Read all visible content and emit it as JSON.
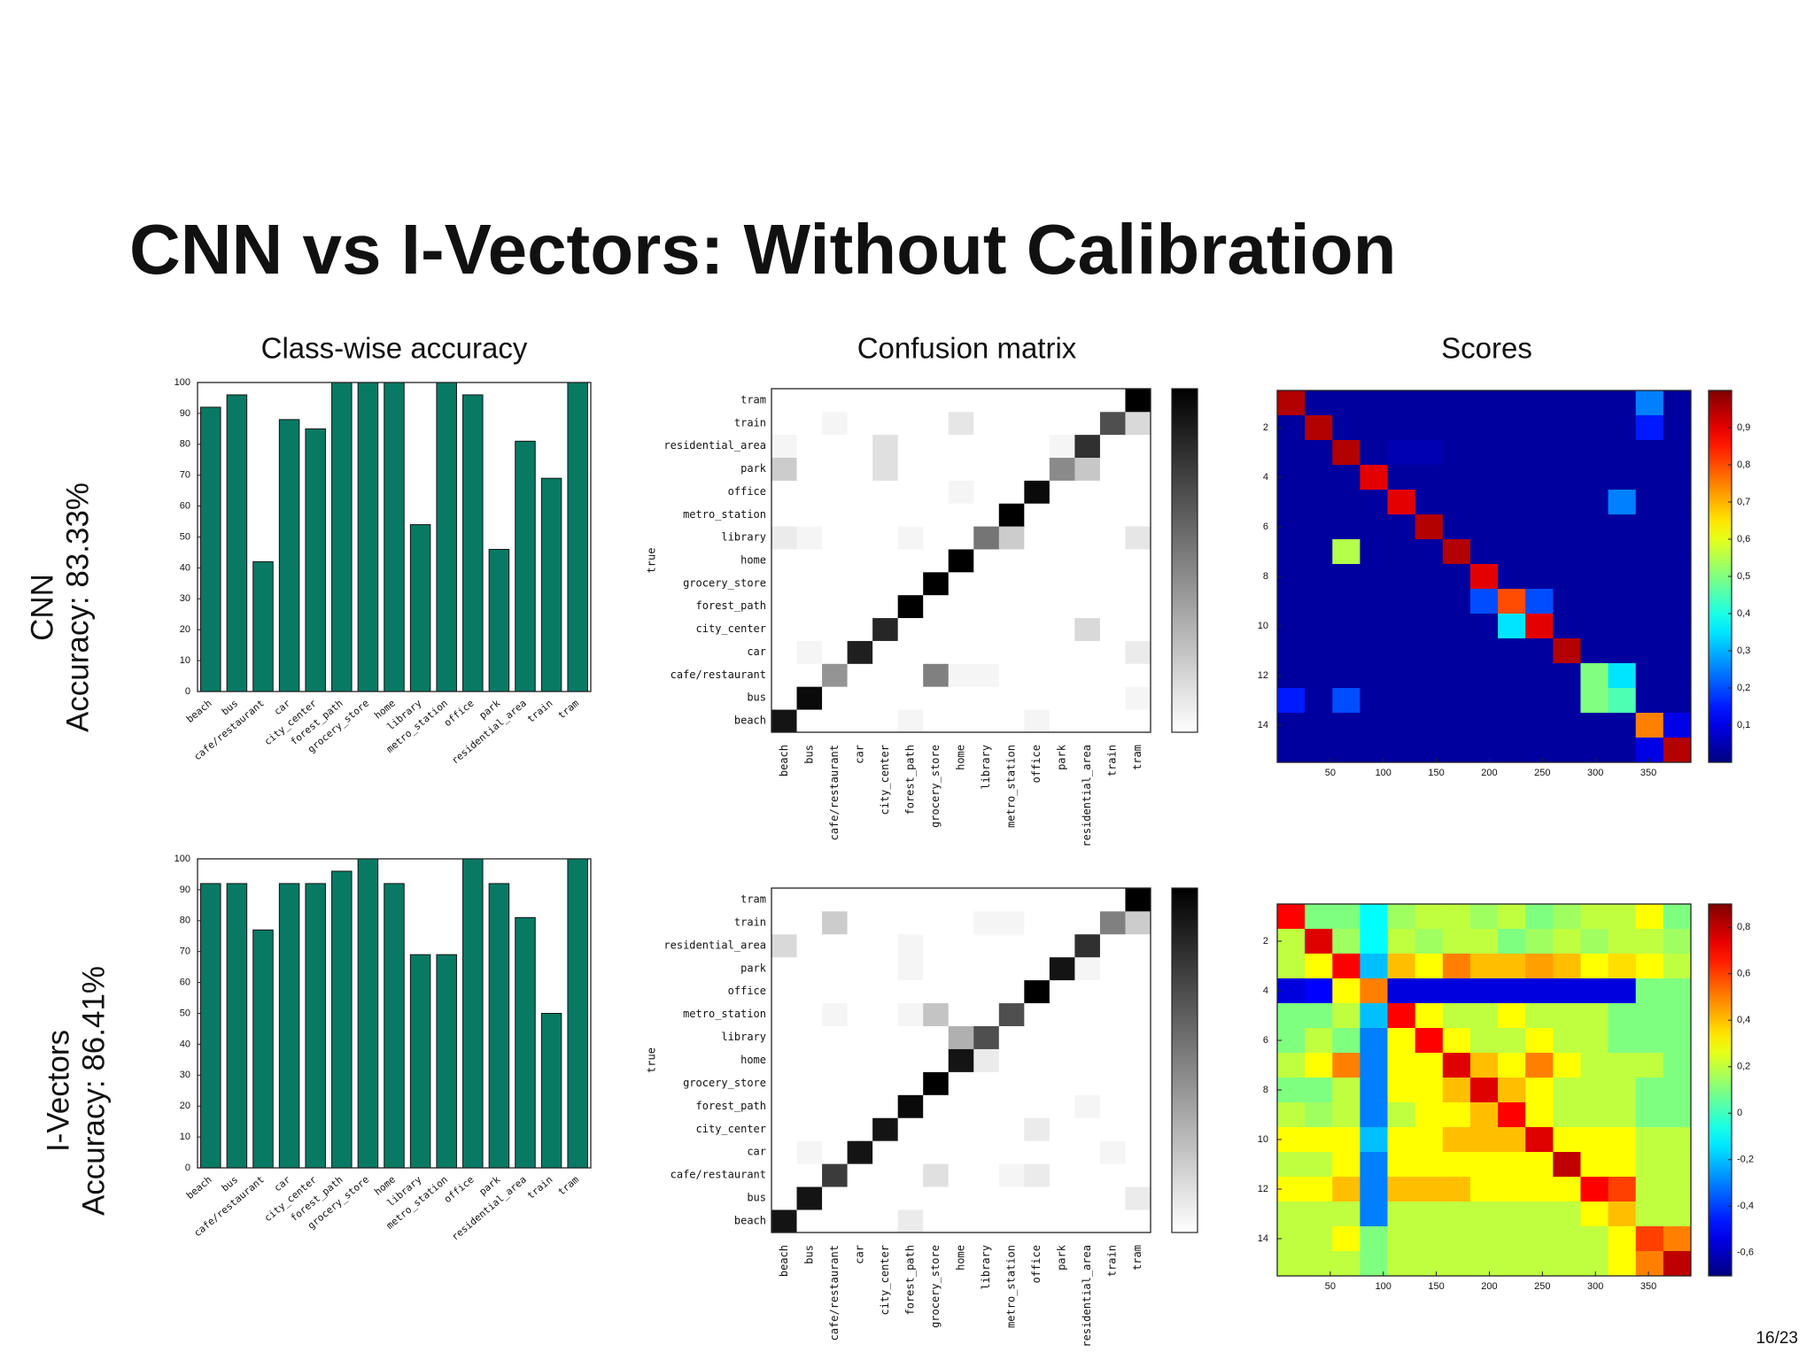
{
  "slide_title": "CNN vs I-Vectors: Without Calibration",
  "page_number": "16/23",
  "rows": [
    {
      "name": "CNN",
      "accuracy": "Accuracy: 83.33%"
    },
    {
      "name": "I-Vectors",
      "accuracy": "Accuracy: 86.41%"
    }
  ],
  "chart_data": [
    {
      "type": "bar",
      "title": "Class-wise accuracy",
      "color": "#087a64",
      "categories": [
        "beach",
        "bus",
        "cafe/restaurant",
        "car",
        "city_center",
        "forest_path",
        "grocery_store",
        "home",
        "library",
        "metro_station",
        "office",
        "park",
        "residential_area",
        "train",
        "tram"
      ],
      "values": [
        92,
        96,
        42,
        88,
        85,
        100,
        100,
        100,
        54,
        100,
        96,
        46,
        81,
        69,
        100
      ],
      "ylim": [
        0,
        100
      ],
      "yticks": [
        0,
        10,
        20,
        30,
        40,
        50,
        60,
        70,
        80,
        90,
        100
      ]
    },
    {
      "type": "heatmap",
      "title": "Confusion matrix",
      "ylabel": "true",
      "colorscale": "gray_r",
      "clim": [
        0,
        1
      ],
      "categories": [
        "beach",
        "bus",
        "cafe/restaurant",
        "car",
        "city_center",
        "forest_path",
        "grocery_store",
        "home",
        "library",
        "metro_station",
        "office",
        "park",
        "residential_area",
        "train",
        "tram"
      ],
      "values": [
        [
          0.92,
          0,
          0,
          0,
          0,
          0.04,
          0,
          0,
          0,
          0,
          0.04,
          0,
          0,
          0,
          0
        ],
        [
          0,
          0.96,
          0,
          0,
          0,
          0,
          0,
          0,
          0,
          0,
          0,
          0,
          0,
          0,
          0.04
        ],
        [
          0,
          0,
          0.42,
          0,
          0,
          0,
          0.5,
          0.04,
          0.04,
          0,
          0,
          0,
          0,
          0,
          0
        ],
        [
          0,
          0.04,
          0,
          0.88,
          0,
          0,
          0,
          0,
          0,
          0,
          0,
          0,
          0,
          0,
          0.08
        ],
        [
          0,
          0,
          0,
          0,
          0.85,
          0,
          0,
          0,
          0,
          0,
          0,
          0,
          0.15,
          0,
          0
        ],
        [
          0,
          0,
          0,
          0,
          0,
          1,
          0,
          0,
          0,
          0,
          0,
          0,
          0,
          0,
          0
        ],
        [
          0,
          0,
          0,
          0,
          0,
          0,
          1,
          0,
          0,
          0,
          0,
          0,
          0,
          0,
          0
        ],
        [
          0,
          0,
          0,
          0,
          0,
          0,
          0,
          1,
          0,
          0,
          0,
          0,
          0,
          0,
          0
        ],
        [
          0.08,
          0.04,
          0,
          0,
          0,
          0.04,
          0,
          0,
          0.54,
          0.2,
          0,
          0,
          0,
          0,
          0.1
        ],
        [
          0,
          0,
          0,
          0,
          0,
          0,
          0,
          0,
          0,
          1,
          0,
          0,
          0,
          0,
          0
        ],
        [
          0,
          0,
          0,
          0,
          0,
          0,
          0,
          0.04,
          0,
          0,
          0.96,
          0,
          0,
          0,
          0
        ],
        [
          0.2,
          0,
          0,
          0,
          0.12,
          0,
          0,
          0,
          0,
          0,
          0,
          0.46,
          0.22,
          0,
          0
        ],
        [
          0.04,
          0,
          0,
          0,
          0.12,
          0,
          0,
          0,
          0,
          0,
          0,
          0.04,
          0.81,
          0,
          0
        ],
        [
          0,
          0,
          0.04,
          0,
          0,
          0,
          0,
          0.1,
          0,
          0,
          0,
          0,
          0,
          0.69,
          0.15
        ],
        [
          0,
          0,
          0,
          0,
          0,
          0,
          0,
          0,
          0,
          0,
          0,
          0,
          0,
          0,
          1
        ]
      ]
    },
    {
      "type": "heatmap",
      "title": "Scores",
      "colorscale": "jet",
      "clim": [
        0,
        1
      ],
      "origin": "upper",
      "xlim": [
        0,
        390
      ],
      "xticks": [
        50,
        100,
        150,
        200,
        250,
        300,
        350
      ],
      "ylim": [
        0.5,
        15.5
      ],
      "yticks": [
        2,
        4,
        6,
        8,
        10,
        12,
        14
      ],
      "cticks": [
        {
          "value": 0.1,
          "label": "0,1"
        },
        {
          "value": 0.2,
          "label": "0,2"
        },
        {
          "value": 0.3,
          "label": "0,3"
        },
        {
          "value": 0.4,
          "label": "0,4"
        },
        {
          "value": 0.5,
          "label": "0,5"
        },
        {
          "value": 0.6,
          "label": "0,6"
        },
        {
          "value": 0.7,
          "label": "0,7"
        },
        {
          "value": 0.8,
          "label": "0,8"
        },
        {
          "value": 0.9,
          "label": "0,9"
        }
      ],
      "values": [
        [
          0.95,
          0.03,
          0.03,
          0.03,
          0.03,
          0.03,
          0.03,
          0.03,
          0.03,
          0.03,
          0.03,
          0.03,
          0.03,
          0.25,
          0.03
        ],
        [
          0.03,
          0.95,
          0.03,
          0.03,
          0.03,
          0.03,
          0.03,
          0.03,
          0.03,
          0.03,
          0.03,
          0.03,
          0.03,
          0.15,
          0.03
        ],
        [
          0.03,
          0.03,
          0.95,
          0.03,
          0.05,
          0.05,
          0.03,
          0.03,
          0.03,
          0.03,
          0.03,
          0.03,
          0.03,
          0.03,
          0.03
        ],
        [
          0.03,
          0.03,
          0.03,
          0.9,
          0.03,
          0.03,
          0.03,
          0.03,
          0.03,
          0.03,
          0.03,
          0.03,
          0.03,
          0.03,
          0.03
        ],
        [
          0.03,
          0.03,
          0.03,
          0.03,
          0.9,
          0.03,
          0.03,
          0.03,
          0.03,
          0.03,
          0.03,
          0.03,
          0.25,
          0.03,
          0.03
        ],
        [
          0.03,
          0.03,
          0.03,
          0.03,
          0.03,
          0.95,
          0.03,
          0.03,
          0.03,
          0.03,
          0.03,
          0.03,
          0.03,
          0.03,
          0.03
        ],
        [
          0.03,
          0.03,
          0.55,
          0.03,
          0.03,
          0.03,
          0.95,
          0.03,
          0.03,
          0.03,
          0.03,
          0.03,
          0.03,
          0.03,
          0.03
        ],
        [
          0.03,
          0.03,
          0.03,
          0.03,
          0.03,
          0.03,
          0.03,
          0.9,
          0.03,
          0.03,
          0.03,
          0.03,
          0.03,
          0.03,
          0.03
        ],
        [
          0.03,
          0.03,
          0.03,
          0.03,
          0.03,
          0.03,
          0.03,
          0.2,
          0.8,
          0.2,
          0.03,
          0.03,
          0.03,
          0.03,
          0.03
        ],
        [
          0.03,
          0.03,
          0.03,
          0.03,
          0.03,
          0.03,
          0.03,
          0.03,
          0.35,
          0.9,
          0.03,
          0.03,
          0.03,
          0.03,
          0.03
        ],
        [
          0.03,
          0.03,
          0.03,
          0.03,
          0.03,
          0.03,
          0.03,
          0.03,
          0.03,
          0.03,
          0.95,
          0.03,
          0.03,
          0.03,
          0.03
        ],
        [
          0.03,
          0.03,
          0.03,
          0.03,
          0.03,
          0.03,
          0.03,
          0.03,
          0.03,
          0.03,
          0.03,
          0.5,
          0.35,
          0.03,
          0.03
        ],
        [
          0.15,
          0.03,
          0.2,
          0.03,
          0.03,
          0.03,
          0.03,
          0.03,
          0.03,
          0.03,
          0.03,
          0.5,
          0.45,
          0.03,
          0.03
        ],
        [
          0.03,
          0.03,
          0.03,
          0.03,
          0.03,
          0.03,
          0.03,
          0.03,
          0.03,
          0.03,
          0.03,
          0.03,
          0.03,
          0.75,
          0.1
        ],
        [
          0.03,
          0.03,
          0.03,
          0.03,
          0.03,
          0.03,
          0.03,
          0.03,
          0.03,
          0.03,
          0.03,
          0.03,
          0.03,
          0.1,
          0.95
        ]
      ]
    },
    {
      "type": "bar",
      "color": "#087a64",
      "categories": [
        "beach",
        "bus",
        "cafe/restaurant",
        "car",
        "city_center",
        "forest_path",
        "grocery_store",
        "home",
        "library",
        "metro_station",
        "office",
        "park",
        "residential_area",
        "train",
        "tram"
      ],
      "values": [
        92,
        92,
        77,
        92,
        92,
        96,
        100,
        92,
        69,
        69,
        100,
        92,
        81,
        50,
        100
      ],
      "ylim": [
        0,
        100
      ],
      "yticks": [
        0,
        10,
        20,
        30,
        40,
        50,
        60,
        70,
        80,
        90,
        100
      ]
    },
    {
      "type": "heatmap",
      "ylabel": "true",
      "colorscale": "gray_r",
      "clim": [
        0,
        1
      ],
      "categories": [
        "beach",
        "bus",
        "cafe/restaurant",
        "car",
        "city_center",
        "forest_path",
        "grocery_store",
        "home",
        "library",
        "metro_station",
        "office",
        "park",
        "residential_area",
        "train",
        "tram"
      ],
      "values": [
        [
          0.92,
          0,
          0,
          0,
          0,
          0.08,
          0,
          0,
          0,
          0,
          0,
          0,
          0,
          0,
          0
        ],
        [
          0,
          0.92,
          0,
          0,
          0,
          0,
          0,
          0,
          0,
          0,
          0,
          0,
          0,
          0,
          0.08
        ],
        [
          0,
          0,
          0.77,
          0,
          0,
          0,
          0.12,
          0,
          0,
          0.04,
          0.08,
          0,
          0,
          0,
          0
        ],
        [
          0,
          0.04,
          0,
          0.92,
          0,
          0,
          0,
          0,
          0,
          0,
          0,
          0,
          0,
          0.04,
          0
        ],
        [
          0,
          0,
          0,
          0,
          0.92,
          0,
          0,
          0,
          0,
          0,
          0.08,
          0,
          0,
          0,
          0
        ],
        [
          0,
          0,
          0,
          0,
          0,
          0.96,
          0,
          0,
          0,
          0,
          0,
          0,
          0.04,
          0,
          0
        ],
        [
          0,
          0,
          0,
          0,
          0,
          0,
          1,
          0,
          0,
          0,
          0,
          0,
          0,
          0,
          0
        ],
        [
          0,
          0,
          0,
          0,
          0,
          0,
          0,
          0.92,
          0.08,
          0,
          0,
          0,
          0,
          0,
          0
        ],
        [
          0,
          0,
          0,
          0,
          0,
          0,
          0,
          0.31,
          0.69,
          0,
          0,
          0,
          0,
          0,
          0
        ],
        [
          0,
          0,
          0.04,
          0,
          0,
          0.04,
          0.23,
          0,
          0,
          0.69,
          0,
          0,
          0,
          0,
          0
        ],
        [
          0,
          0,
          0,
          0,
          0,
          0,
          0,
          0,
          0,
          0,
          1,
          0,
          0,
          0,
          0
        ],
        [
          0,
          0,
          0,
          0,
          0,
          0.04,
          0,
          0,
          0,
          0,
          0,
          0.92,
          0.04,
          0,
          0
        ],
        [
          0.15,
          0,
          0,
          0,
          0,
          0.04,
          0,
          0,
          0,
          0,
          0,
          0,
          0.81,
          0,
          0
        ],
        [
          0,
          0,
          0.2,
          0,
          0,
          0,
          0,
          0,
          0.04,
          0.04,
          0,
          0,
          0,
          0.5,
          0.2
        ],
        [
          0,
          0,
          0,
          0,
          0,
          0,
          0,
          0,
          0,
          0,
          0,
          0,
          0,
          0,
          1
        ]
      ]
    },
    {
      "type": "heatmap",
      "colorscale": "jet",
      "clim": [
        -0.7,
        0.9
      ],
      "origin": "upper",
      "xlim": [
        0,
        390
      ],
      "xticks": [
        50,
        100,
        150,
        200,
        250,
        300,
        350
      ],
      "ylim": [
        0.5,
        15.5
      ],
      "yticks": [
        2,
        4,
        6,
        8,
        10,
        12,
        14
      ],
      "cticks": [
        {
          "value": -0.6,
          "label": "-0,6"
        },
        {
          "value": -0.4,
          "label": "-0,4"
        },
        {
          "value": -0.2,
          "label": "-0,2"
        },
        0,
        {
          "value": 0.2,
          "label": "0,2"
        },
        {
          "value": 0.4,
          "label": "0,4"
        },
        {
          "value": 0.6,
          "label": "0,6"
        },
        {
          "value": 0.8,
          "label": "0,8"
        }
      ],
      "values": [
        [
          0.7,
          0.1,
          0.1,
          -0.1,
          0.15,
          0.2,
          0.2,
          0.15,
          0.2,
          0.1,
          0.15,
          0.2,
          0.2,
          0.3,
          0.1
        ],
        [
          0.2,
          0.75,
          0.15,
          -0.1,
          0.2,
          0.15,
          0.2,
          0.2,
          0.1,
          0.15,
          0.2,
          0.15,
          0.2,
          0.2,
          0.15
        ],
        [
          0.2,
          0.3,
          0.7,
          -0.2,
          0.4,
          0.3,
          0.5,
          0.4,
          0.4,
          0.45,
          0.4,
          0.3,
          0.35,
          0.3,
          0.2
        ],
        [
          -0.55,
          -0.5,
          0.3,
          0.5,
          -0.55,
          -0.55,
          -0.55,
          -0.55,
          -0.55,
          -0.55,
          -0.55,
          -0.55,
          -0.55,
          0.1,
          0.1
        ],
        [
          0.1,
          0.1,
          0.2,
          -0.2,
          0.7,
          0.3,
          0.2,
          0.2,
          0.3,
          0.2,
          0.2,
          0.2,
          0.1,
          0.1,
          0.1
        ],
        [
          0.1,
          0.2,
          0.1,
          -0.3,
          0.3,
          0.7,
          0.3,
          0.2,
          0.2,
          0.3,
          0.2,
          0.2,
          0.1,
          0.1,
          0.1
        ],
        [
          0.2,
          0.3,
          0.5,
          -0.3,
          0.3,
          0.3,
          0.75,
          0.4,
          0.3,
          0.5,
          0.3,
          0.2,
          0.2,
          0.2,
          0.1
        ],
        [
          0.1,
          0.1,
          0.2,
          -0.3,
          0.3,
          0.3,
          0.4,
          0.75,
          0.4,
          0.3,
          0.2,
          0.2,
          0.2,
          0.1,
          0.1
        ],
        [
          0.2,
          0.15,
          0.2,
          -0.3,
          0.2,
          0.3,
          0.3,
          0.4,
          0.7,
          0.3,
          0.2,
          0.2,
          0.2,
          0.1,
          0.1
        ],
        [
          0.3,
          0.3,
          0.3,
          -0.2,
          0.3,
          0.3,
          0.4,
          0.4,
          0.4,
          0.75,
          0.3,
          0.3,
          0.3,
          0.2,
          0.2
        ],
        [
          0.2,
          0.2,
          0.3,
          -0.3,
          0.3,
          0.3,
          0.3,
          0.3,
          0.3,
          0.3,
          0.8,
          0.3,
          0.3,
          0.2,
          0.2
        ],
        [
          0.3,
          0.3,
          0.4,
          -0.3,
          0.4,
          0.4,
          0.4,
          0.3,
          0.3,
          0.3,
          0.3,
          0.7,
          0.6,
          0.2,
          0.2
        ],
        [
          0.2,
          0.2,
          0.2,
          -0.3,
          0.2,
          0.2,
          0.2,
          0.2,
          0.2,
          0.2,
          0.2,
          0.3,
          0.4,
          0.2,
          0.2
        ],
        [
          0.2,
          0.2,
          0.3,
          0.1,
          0.2,
          0.2,
          0.2,
          0.2,
          0.2,
          0.2,
          0.2,
          0.2,
          0.3,
          0.6,
          0.5
        ],
        [
          0.2,
          0.2,
          0.2,
          0.1,
          0.2,
          0.2,
          0.2,
          0.2,
          0.2,
          0.2,
          0.2,
          0.2,
          0.3,
          0.5,
          0.8
        ]
      ]
    }
  ]
}
